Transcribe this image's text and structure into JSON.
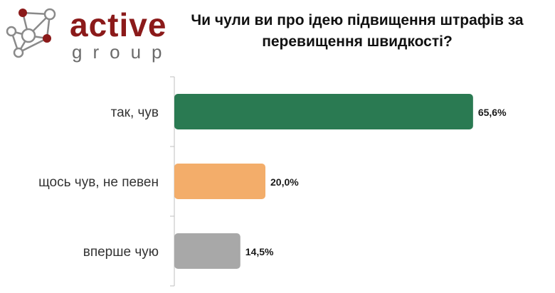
{
  "logo": {
    "brand": "active",
    "sub": "group"
  },
  "colors": {
    "brand": "#8b1a1a",
    "node_outline": "#8a8a8a"
  },
  "chart_data": {
    "type": "bar",
    "orientation": "horizontal",
    "title": "Чи чули ви про ідею підвищення штрафів за перевищення швидкості?",
    "categories": [
      "так, чув",
      "щось чув, не певен",
      "вперше чую"
    ],
    "values": [
      65.6,
      20.0,
      14.5
    ],
    "value_labels": [
      "65,6%",
      "20,0%",
      "14,5%"
    ],
    "colors": [
      "#2a7a52",
      "#f3ad6a",
      "#a8a8a8"
    ],
    "xlim": [
      0,
      100
    ],
    "grid": false,
    "legend": "none"
  }
}
